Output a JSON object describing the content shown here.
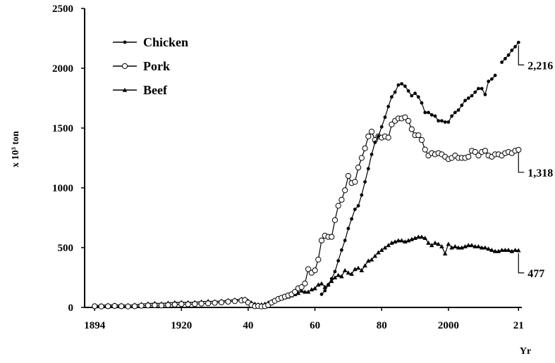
{
  "chart_data": {
    "type": "line",
    "title": "",
    "xlabel": "Yr",
    "ylabel": "x 10³ ton",
    "ylim": [
      0,
      2500
    ],
    "xlim": [
      1891,
      2022
    ],
    "yticks": [
      0,
      500,
      1000,
      1500,
      2000,
      2500
    ],
    "xticks": [
      {
        "value": 1894,
        "label": "1894"
      },
      {
        "value": 1920,
        "label": "1920"
      },
      {
        "value": 1940,
        "label": "40"
      },
      {
        "value": 1960,
        "label": "60"
      },
      {
        "value": 1980,
        "label": "80"
      },
      {
        "value": 2000,
        "label": "2000"
      },
      {
        "value": 2021,
        "label": "21"
      }
    ],
    "grid": false,
    "legend_position": "top-left",
    "series": [
      {
        "name": "Chicken",
        "marker": "filled-circle",
        "color": "#000000",
        "end_label": "2,216",
        "segments": [
          [
            [
              1962,
              110
            ],
            [
              1963,
              140
            ],
            [
              1964,
              190
            ],
            [
              1965,
              240
            ],
            [
              1966,
              300
            ],
            [
              1967,
              390
            ],
            [
              1968,
              480
            ],
            [
              1969,
              560
            ],
            [
              1970,
              660
            ],
            [
              1971,
              740
            ],
            [
              1972,
              820
            ],
            [
              1973,
              850
            ],
            [
              1974,
              940
            ],
            [
              1975,
              1050
            ],
            [
              1976,
              1160
            ],
            [
              1977,
              1280
            ],
            [
              1978,
              1380
            ],
            [
              1979,
              1430
            ],
            [
              1980,
              1510
            ],
            [
              1981,
              1590
            ],
            [
              1982,
              1680
            ],
            [
              1983,
              1760
            ],
            [
              1984,
              1800
            ],
            [
              1985,
              1860
            ],
            [
              1986,
              1870
            ],
            [
              1987,
              1850
            ],
            [
              1988,
              1810
            ],
            [
              1989,
              1770
            ],
            [
              1990,
              1790
            ],
            [
              1991,
              1760
            ],
            [
              1992,
              1710
            ],
            [
              1993,
              1630
            ],
            [
              1994,
              1630
            ],
            [
              1995,
              1610
            ],
            [
              1996,
              1600
            ],
            [
              1997,
              1560
            ],
            [
              1998,
              1560
            ],
            [
              1999,
              1550
            ],
            [
              2000,
              1550
            ],
            [
              2001,
              1600
            ],
            [
              2002,
              1630
            ],
            [
              2003,
              1650
            ],
            [
              2004,
              1690
            ],
            [
              2005,
              1730
            ],
            [
              2006,
              1750
            ],
            [
              2007,
              1770
            ],
            [
              2008,
              1800
            ],
            [
              2009,
              1830
            ],
            [
              2010,
              1830
            ],
            [
              2011,
              1780
            ],
            [
              2012,
              1890
            ],
            [
              2013,
              1910
            ],
            [
              2014,
              1940
            ]
          ],
          [
            [
              2016,
              2050
            ],
            [
              2017,
              2080
            ],
            [
              2018,
              2110
            ],
            [
              2019,
              2150
            ],
            [
              2020,
              2180
            ],
            [
              2021,
              2216
            ]
          ]
        ]
      },
      {
        "name": "Pork",
        "marker": "open-circle",
        "color": "#000000",
        "end_label": "1,318",
        "segments": [
          [
            [
              1894,
              10
            ],
            [
              1896,
              8
            ],
            [
              1898,
              10
            ],
            [
              1900,
              12
            ],
            [
              1902,
              10
            ],
            [
              1904,
              8
            ],
            [
              1906,
              10
            ],
            [
              1908,
              14
            ],
            [
              1910,
              16
            ],
            [
              1912,
              18
            ],
            [
              1914,
              16
            ],
            [
              1916,
              20
            ],
            [
              1918,
              24
            ],
            [
              1920,
              28
            ],
            [
              1922,
              26
            ],
            [
              1924,
              28
            ],
            [
              1926,
              32
            ],
            [
              1928,
              34
            ],
            [
              1930,
              38
            ],
            [
              1932,
              42
            ],
            [
              1934,
              48
            ],
            [
              1936,
              52
            ],
            [
              1938,
              58
            ],
            [
              1939,
              62
            ],
            [
              1940,
              40
            ],
            [
              1941,
              20
            ],
            [
              1942,
              10
            ],
            [
              1943,
              12
            ],
            [
              1944,
              8
            ],
            [
              1945,
              10
            ],
            [
              1946,
              20
            ],
            [
              1947,
              40
            ],
            [
              1948,
              55
            ],
            [
              1949,
              70
            ],
            [
              1950,
              80
            ],
            [
              1951,
              90
            ],
            [
              1952,
              100
            ],
            [
              1953,
              110
            ],
            [
              1954,
              130
            ],
            [
              1955,
              160
            ],
            [
              1956,
              170
            ],
            [
              1957,
              200
            ],
            [
              1958,
              320
            ],
            [
              1959,
              290
            ],
            [
              1960,
              310
            ],
            [
              1961,
              400
            ],
            [
              1962,
              560
            ],
            [
              1963,
              600
            ],
            [
              1964,
              590
            ],
            [
              1965,
              590
            ],
            [
              1966,
              730
            ],
            [
              1967,
              850
            ],
            [
              1968,
              900
            ],
            [
              1969,
              980
            ],
            [
              1970,
              1100
            ],
            [
              1971,
              1040
            ],
            [
              1972,
              1050
            ],
            [
              1973,
              1170
            ],
            [
              1974,
              1250
            ],
            [
              1975,
              1330
            ],
            [
              1976,
              1430
            ],
            [
              1977,
              1470
            ],
            [
              1978,
              1400
            ],
            [
              1979,
              1430
            ],
            [
              1980,
              1420
            ],
            [
              1981,
              1430
            ],
            [
              1982,
              1420
            ],
            [
              1983,
              1530
            ],
            [
              1984,
              1560
            ],
            [
              1985,
              1580
            ],
            [
              1986,
              1580
            ],
            [
              1987,
              1590
            ],
            [
              1988,
              1560
            ],
            [
              1989,
              1490
            ],
            [
              1990,
              1440
            ],
            [
              1991,
              1440
            ],
            [
              1992,
              1400
            ],
            [
              1993,
              1320
            ],
            [
              1994,
              1270
            ],
            [
              1995,
              1290
            ],
            [
              1996,
              1280
            ],
            [
              1997,
              1290
            ],
            [
              1998,
              1280
            ],
            [
              1999,
              1260
            ],
            [
              2000,
              1240
            ],
            [
              2001,
              1250
            ],
            [
              2002,
              1270
            ],
            [
              2003,
              1250
            ],
            [
              2004,
              1250
            ],
            [
              2005,
              1250
            ],
            [
              2006,
              1260
            ],
            [
              2007,
              1310
            ],
            [
              2008,
              1300
            ],
            [
              2009,
              1270
            ],
            [
              2010,
              1300
            ],
            [
              2011,
              1310
            ],
            [
              2012,
              1270
            ],
            [
              2013,
              1260
            ],
            [
              2014,
              1280
            ],
            [
              2015,
              1280
            ],
            [
              2016,
              1270
            ],
            [
              2017,
              1290
            ],
            [
              2018,
              1300
            ],
            [
              2019,
              1290
            ],
            [
              2020,
              1310
            ],
            [
              2021,
              1318
            ]
          ]
        ]
      },
      {
        "name": "Beef",
        "marker": "triangle",
        "color": "#000000",
        "end_label": "477",
        "segments": [
          [
            [
              1894,
              15
            ],
            [
              1896,
              18
            ],
            [
              1898,
              20
            ],
            [
              1900,
              22
            ],
            [
              1902,
              20
            ],
            [
              1904,
              18
            ],
            [
              1906,
              22
            ],
            [
              1908,
              28
            ],
            [
              1910,
              32
            ],
            [
              1912,
              36
            ],
            [
              1914,
              32
            ],
            [
              1916,
              38
            ],
            [
              1918,
              42
            ],
            [
              1920,
              44
            ],
            [
              1922,
              42
            ],
            [
              1924,
              44
            ],
            [
              1926,
              48
            ],
            [
              1928,
              52
            ],
            [
              1930,
              50
            ],
            [
              1932,
              54
            ],
            [
              1934,
              60
            ],
            [
              1936,
              64
            ],
            [
              1938,
              70
            ],
            [
              1939,
              72
            ],
            [
              1940,
              55
            ],
            [
              1941,
              40
            ],
            [
              1942,
              30
            ],
            [
              1943,
              25
            ],
            [
              1944,
              25
            ],
            [
              1945,
              30
            ],
            [
              1946,
              40
            ],
            [
              1947,
              50
            ],
            [
              1948,
              60
            ],
            [
              1949,
              70
            ],
            [
              1950,
              75
            ],
            [
              1951,
              85
            ],
            [
              1952,
              90
            ],
            [
              1953,
              100
            ],
            [
              1954,
              110
            ],
            [
              1955,
              120
            ],
            [
              1956,
              140
            ],
            [
              1957,
              130
            ],
            [
              1958,
              130
            ],
            [
              1959,
              150
            ],
            [
              1960,
              160
            ],
            [
              1961,
              190
            ],
            [
              1962,
              200
            ],
            [
              1963,
              170
            ],
            [
              1964,
              190
            ],
            [
              1965,
              220
            ],
            [
              1966,
              250
            ],
            [
              1967,
              270
            ],
            [
              1968,
              260
            ],
            [
              1969,
              310
            ],
            [
              1970,
              290
            ],
            [
              1971,
              280
            ],
            [
              1972,
              320
            ],
            [
              1973,
              330
            ],
            [
              1974,
              310
            ],
            [
              1975,
              350
            ],
            [
              1976,
              390
            ],
            [
              1977,
              400
            ],
            [
              1978,
              430
            ],
            [
              1979,
              460
            ],
            [
              1980,
              480
            ],
            [
              1981,
              500
            ],
            [
              1982,
              520
            ],
            [
              1983,
              540
            ],
            [
              1984,
              550
            ],
            [
              1985,
              560
            ],
            [
              1986,
              560
            ],
            [
              1987,
              550
            ],
            [
              1988,
              560
            ],
            [
              1989,
              570
            ],
            [
              1990,
              580
            ],
            [
              1991,
              590
            ],
            [
              1992,
              590
            ],
            [
              1993,
              580
            ],
            [
              1994,
              540
            ],
            [
              1995,
              520
            ],
            [
              1996,
              540
            ],
            [
              1997,
              530
            ],
            [
              1998,
              510
            ],
            [
              1999,
              450
            ],
            [
              2000,
              530
            ],
            [
              2001,
              500
            ],
            [
              2002,
              510
            ],
            [
              2003,
              500
            ],
            [
              2004,
              500
            ],
            [
              2005,
              510
            ],
            [
              2006,
              520
            ],
            [
              2007,
              520
            ],
            [
              2008,
              510
            ],
            [
              2009,
              510
            ],
            [
              2010,
              500
            ],
            [
              2011,
              500
            ],
            [
              2012,
              490
            ],
            [
              2013,
              480
            ],
            [
              2014,
              470
            ],
            [
              2015,
              470
            ],
            [
              2016,
              480
            ],
            [
              2017,
              480
            ],
            [
              2018,
              480
            ],
            [
              2019,
              470
            ],
            [
              2020,
              480
            ],
            [
              2021,
              477
            ]
          ]
        ]
      }
    ]
  }
}
